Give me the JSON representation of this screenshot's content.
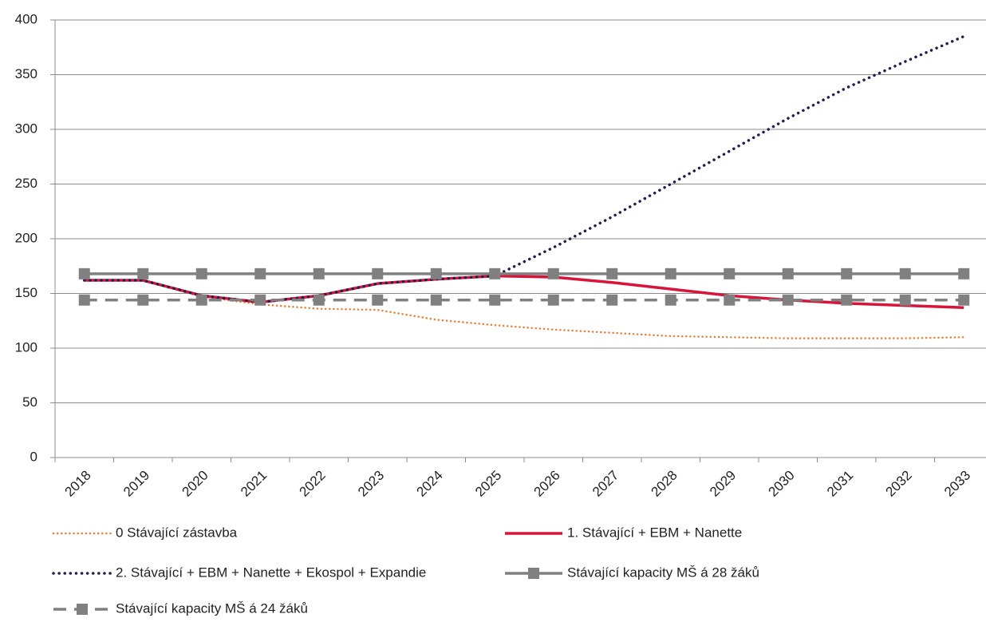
{
  "chart_data": {
    "type": "line",
    "categories": [
      "2018",
      "2019",
      "2020",
      "2021",
      "2022",
      "2023",
      "2024",
      "2025",
      "2026",
      "2027",
      "2028",
      "2029",
      "2030",
      "2031",
      "2032",
      "2033"
    ],
    "series": [
      {
        "name": "0 Stávající zástavba",
        "color": "#ed7d31",
        "style": "dotted",
        "values": [
          162,
          162,
          147,
          140,
          136,
          135,
          126,
          121,
          117,
          114,
          111,
          110,
          109,
          109,
          109,
          110
        ]
      },
      {
        "name": "1. Stávající + EBM + Nanette",
        "color": "#d9143a",
        "style": "solid",
        "values": [
          162,
          162,
          148,
          142,
          148,
          159,
          163,
          166,
          165,
          160,
          154,
          148,
          144,
          141,
          139,
          137
        ]
      },
      {
        "name": "2. Stávající + EBM + Nanette + Ekospol + Expandie",
        "color": "#1f2050",
        "style": "dotted",
        "values": [
          162,
          162,
          148,
          142,
          148,
          159,
          163,
          166,
          192,
          220,
          250,
          280,
          310,
          338,
          362,
          385
        ]
      },
      {
        "name": "Stávající kapacity MŠ á 28 žáků",
        "color": "#808080",
        "style": "solid",
        "marker": "square",
        "values": [
          168,
          168,
          168,
          168,
          168,
          168,
          168,
          168,
          168,
          168,
          168,
          168,
          168,
          168,
          168,
          168
        ]
      },
      {
        "name": "Stávající kapacity MŠ á 24 žáků",
        "color": "#808080",
        "style": "dashed",
        "marker": "square",
        "values": [
          144,
          144,
          144,
          144,
          144,
          144,
          144,
          144,
          144,
          144,
          144,
          144,
          144,
          144,
          144,
          144
        ]
      }
    ],
    "ylim": [
      0,
      400
    ],
    "yticks": [
      0,
      50,
      100,
      150,
      200,
      250,
      300,
      350,
      400
    ],
    "grid": true,
    "legend": "bottom"
  }
}
